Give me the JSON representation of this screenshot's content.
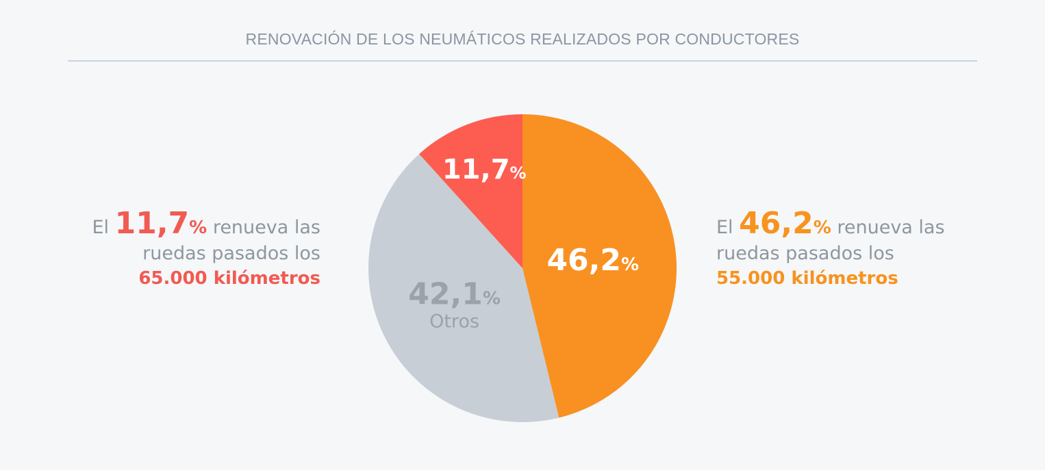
{
  "title": "RENOVACIÓN DE LOS NEUMÁTICOS REALIZADOS POR CONDUCTORES",
  "colors": {
    "red": "#fd5c50",
    "orange": "#f89122",
    "gray": "#c8ced5",
    "grayText": "#9aa2aa",
    "labelText": "#8e979f"
  },
  "left_callout": {
    "prefix": "El ",
    "value": "11,7",
    "pct": "%",
    "line1_suffix": " renueva las",
    "line2": "ruedas pasados los",
    "line3": "65.000 kilómetros"
  },
  "right_callout": {
    "prefix": "El ",
    "value": "46,2",
    "pct": "%",
    "line1_suffix": " renueva las",
    "line2": "ruedas pasados los",
    "line3": "55.000 kilómetros"
  },
  "chart_data": {
    "type": "pie",
    "title": "RENOVACIÓN DE LOS NEUMÁTICOS REALIZADOS POR CONDUCTORES",
    "slices": [
      {
        "label": "",
        "value": 46.2,
        "display": "46,2",
        "color": "#f89122",
        "text_color": "#ffffff"
      },
      {
        "label": "Otros",
        "value": 42.1,
        "display": "42,1",
        "color": "#c8ced5",
        "text_color": "#9aa2aa"
      },
      {
        "label": "",
        "value": 11.7,
        "display": "11,7",
        "color": "#fd5c50",
        "text_color": "#ffffff"
      }
    ],
    "unit": "%"
  }
}
